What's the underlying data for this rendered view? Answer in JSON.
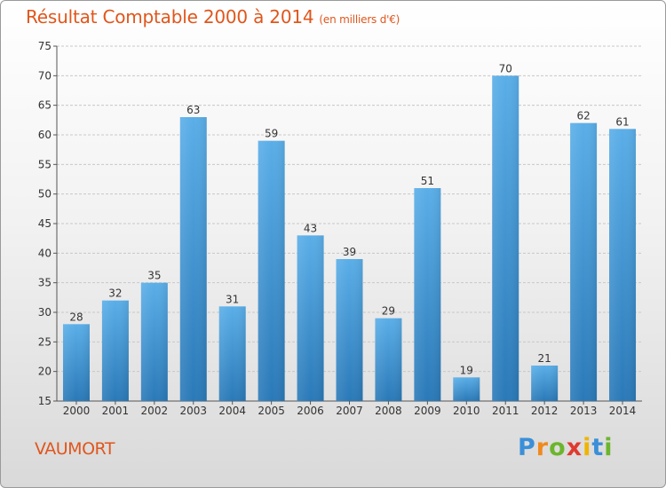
{
  "title": "Résultat Comptable 2000 à 2014",
  "subtitle": "(en milliers d'€)",
  "commune": "VAUMORT",
  "logo": {
    "text": "Proxiti",
    "letters": [
      "P",
      "r",
      "o",
      "x",
      "i",
      "t",
      "i"
    ],
    "colors": [
      "#3a8fd8",
      "#f08a1d",
      "#6cb52d",
      "#e03a2f",
      "#f0b400",
      "#3a8fd8",
      "#6cb52d"
    ]
  },
  "chart_data": {
    "type": "bar",
    "categories": [
      "2000",
      "2001",
      "2002",
      "2003",
      "2004",
      "2005",
      "2006",
      "2007",
      "2008",
      "2009",
      "2010",
      "2011",
      "2012",
      "2013",
      "2014"
    ],
    "values": [
      28,
      32,
      35,
      63,
      31,
      59,
      43,
      39,
      29,
      51,
      19,
      70,
      21,
      62,
      61
    ],
    "ylim": [
      15,
      75
    ],
    "yticks": [
      15,
      20,
      25,
      30,
      35,
      40,
      45,
      50,
      55,
      60,
      65,
      70,
      75
    ],
    "grid": true,
    "colors": {
      "bar_top": "#5aaee8",
      "bar_bottom": "#2a79b8",
      "title": "#e0561c"
    }
  }
}
